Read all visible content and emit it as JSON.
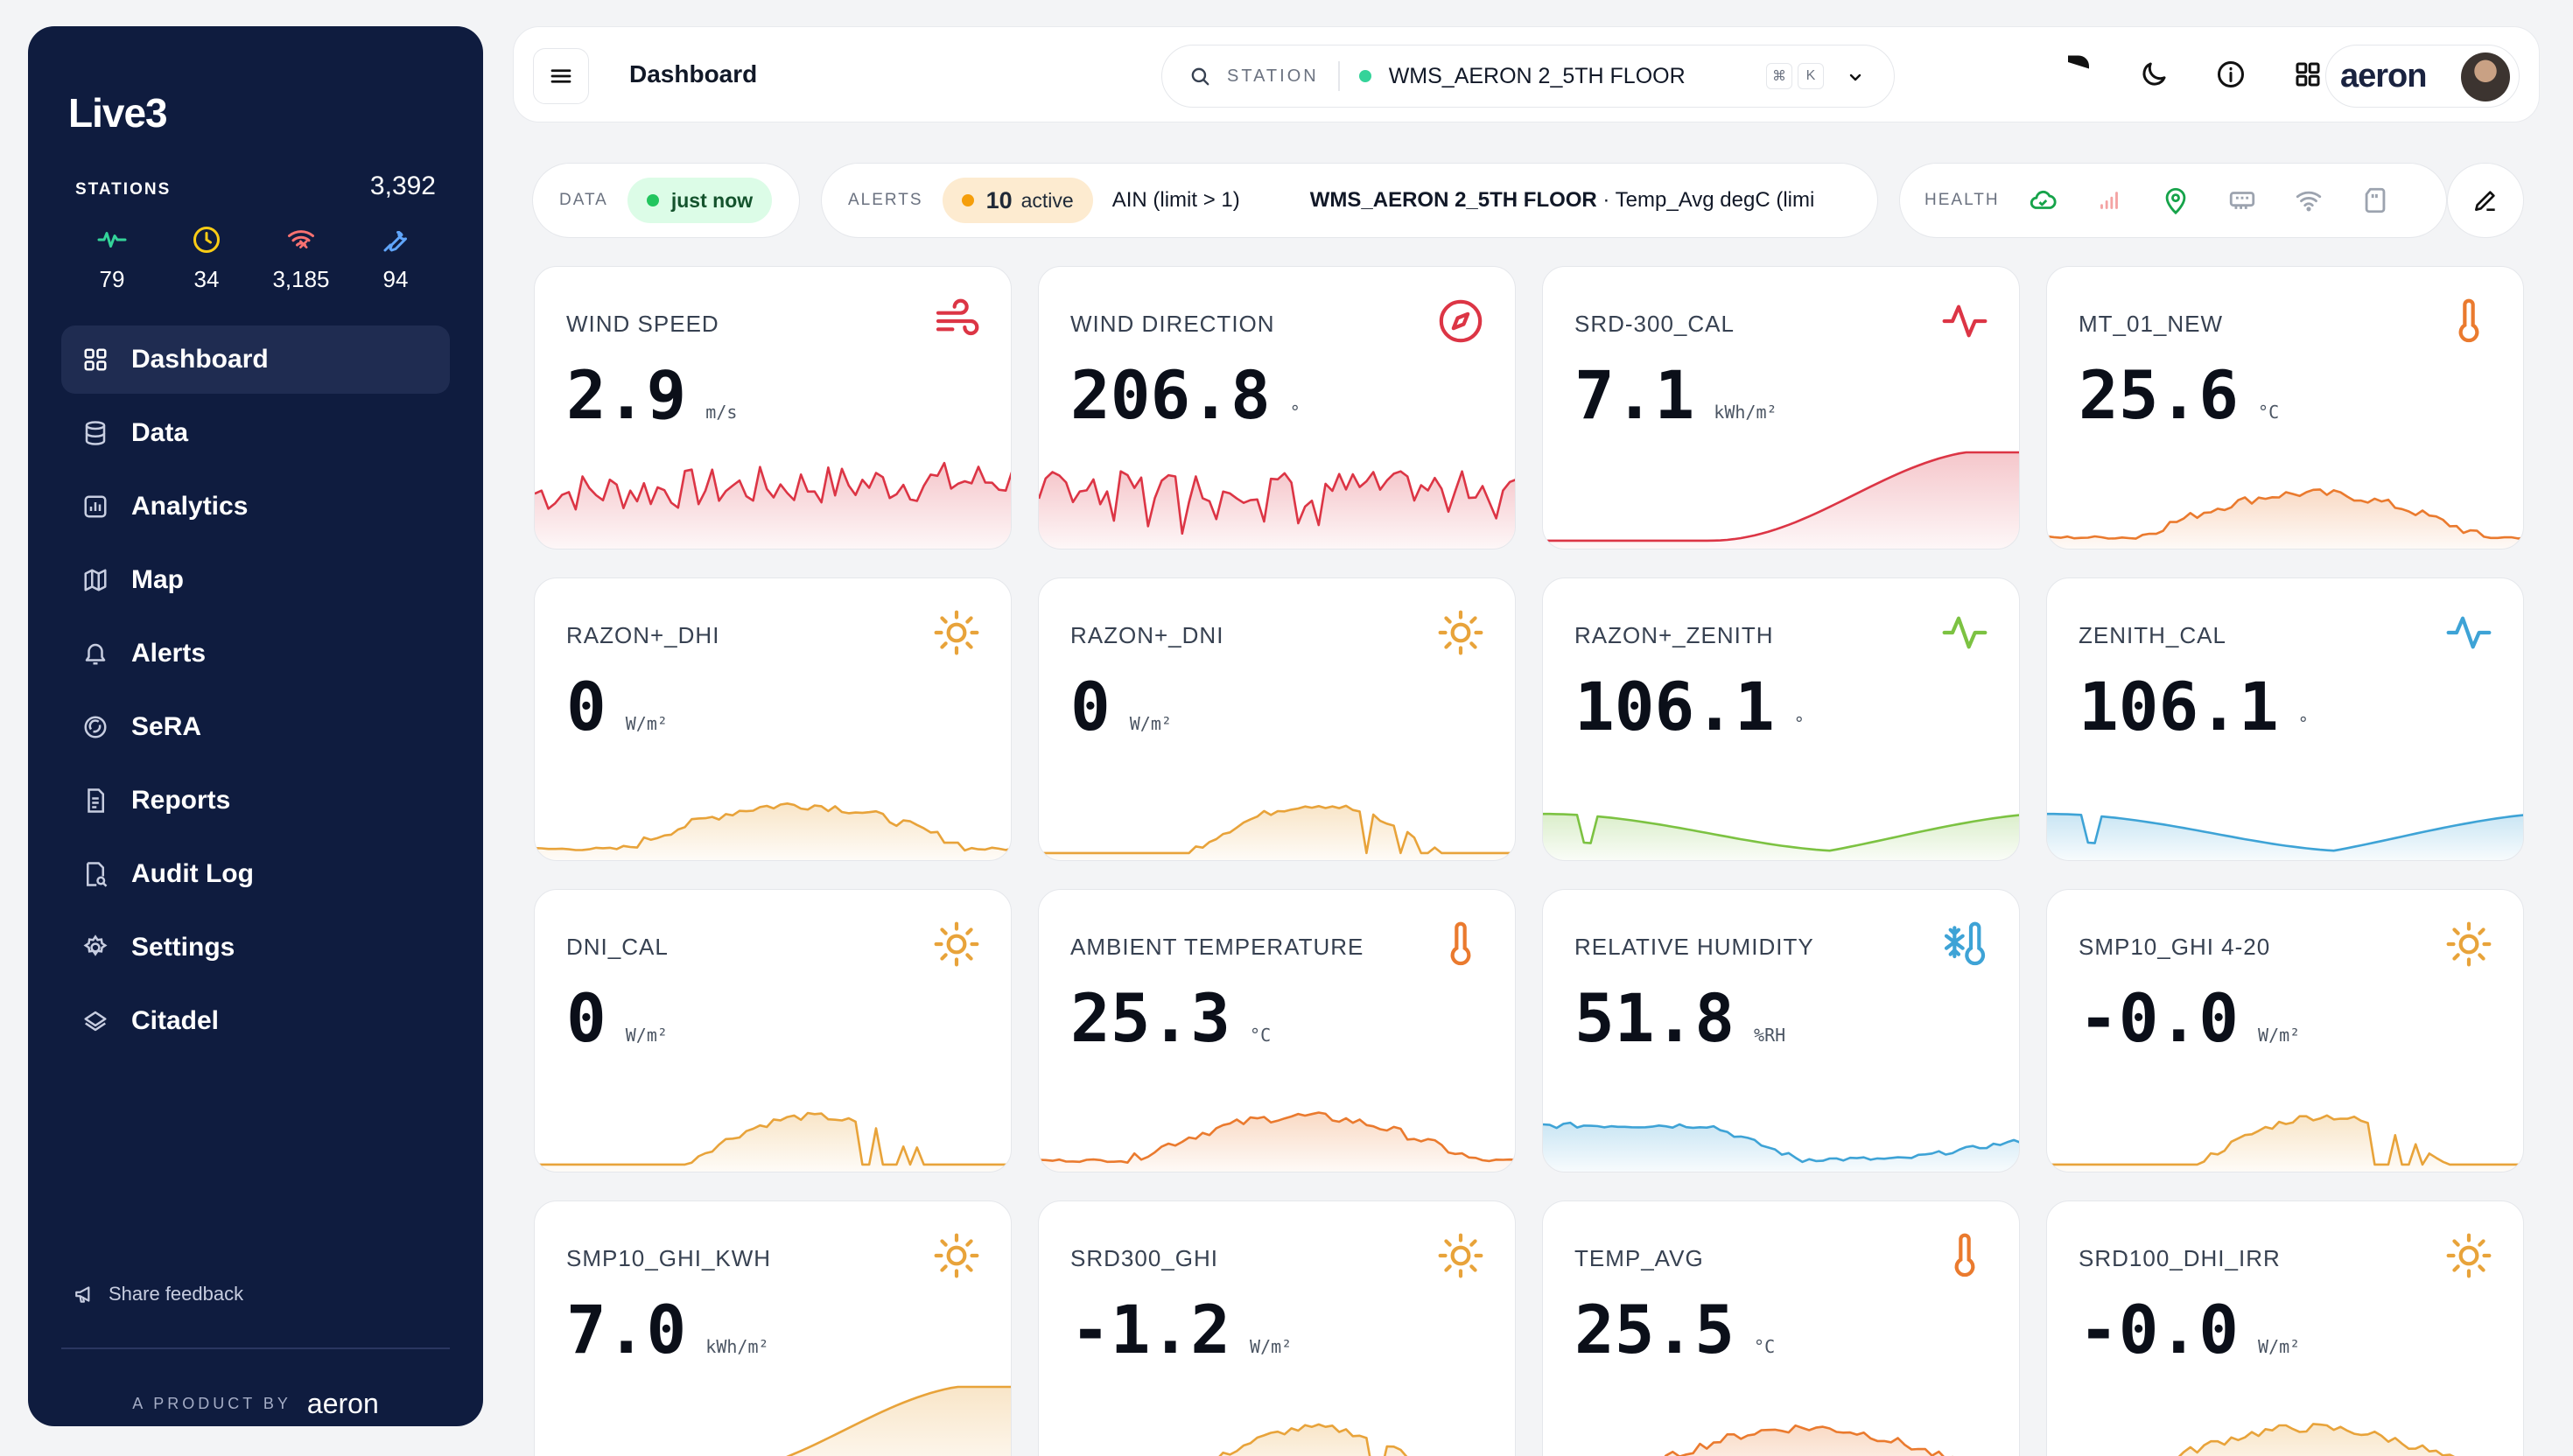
{
  "sidebar": {
    "brand": "Live3",
    "stations_label": "STATIONS",
    "stations_total": "3,392",
    "stats": [
      {
        "icon": "activity-icon",
        "value": "79",
        "color": "#34d399"
      },
      {
        "icon": "clock-icon",
        "value": "34",
        "color": "#facc15"
      },
      {
        "icon": "wifi-off-icon",
        "value": "3,185",
        "color": "#f87171"
      },
      {
        "icon": "wrench-icon",
        "value": "94",
        "color": "#60a5fa"
      }
    ],
    "nav": [
      {
        "label": "Dashboard",
        "icon": "grid-icon",
        "active": true
      },
      {
        "label": "Data",
        "icon": "database-icon"
      },
      {
        "label": "Analytics",
        "icon": "analytics-icon"
      },
      {
        "label": "Map",
        "icon": "map-icon"
      },
      {
        "label": "Alerts",
        "icon": "bell-icon"
      },
      {
        "label": "SeRA",
        "icon": "sera-icon"
      },
      {
        "label": "Reports",
        "icon": "report-icon"
      },
      {
        "label": "Audit Log",
        "icon": "audit-icon"
      },
      {
        "label": "Settings",
        "icon": "gear-icon"
      },
      {
        "label": "Citadel",
        "icon": "citadel-icon"
      }
    ],
    "feedback": "Share feedback",
    "product_by": "A PRODUCT BY",
    "product_brand": "aeron"
  },
  "header": {
    "title": "Dashboard",
    "station_label": "STATION",
    "station_name": "WMS_AERON 2_5TH FLOOR",
    "kbd_1": "⌘",
    "kbd_2": "K",
    "brand": "aeron"
  },
  "status": {
    "data_label": "DATA",
    "data_value": "just now",
    "alerts_label": "ALERTS",
    "alerts_count": "10",
    "alerts_suffix": "active",
    "ticker_1": "AIN (limit > 1)",
    "ticker_2_bold": "WMS_AERON 2_5TH FLOOR",
    "ticker_2_rest": " · Temp_Avg degC (limi",
    "health_label": "HEALTH"
  },
  "colors": {
    "red": "#dc3545",
    "orange": "#e8a33a",
    "green": "#7cc242",
    "blue": "#3ea3d6",
    "temp": "#ea7a2e"
  },
  "cards": [
    {
      "title": "WIND SPEED",
      "value": "2.9",
      "unit": "m/s",
      "icon": "wind-icon"
    },
    {
      "title": "WIND DIRECTION",
      "value": "206.8",
      "unit": "°",
      "icon": "compass-icon"
    },
    {
      "title": "SRD-300_CAL",
      "value": "7.1",
      "unit": "kWh/m²",
      "icon": "activity-icon"
    },
    {
      "title": "MT_01_NEW",
      "value": "25.6",
      "unit": "°C",
      "icon": "thermometer-icon"
    },
    {
      "title": "RAZON+_DHI",
      "value": "0",
      "unit": "W/m²",
      "icon": "sun-icon"
    },
    {
      "title": "RAZON+_DNI",
      "value": "0",
      "unit": "W/m²",
      "icon": "sun-icon"
    },
    {
      "title": "RAZON+_ZENITH",
      "value": "106.1",
      "unit": "°",
      "icon": "activity-icon"
    },
    {
      "title": "ZENITH_CAL",
      "value": "106.1",
      "unit": "°",
      "icon": "activity-icon"
    },
    {
      "title": "DNI_CAL",
      "value": "0",
      "unit": "W/m²",
      "icon": "sun-icon"
    },
    {
      "title": "AMBIENT TEMPERATURE",
      "value": "25.3",
      "unit": "°C",
      "icon": "thermometer-icon"
    },
    {
      "title": "RELATIVE HUMIDITY",
      "value": "51.8",
      "unit": "%RH",
      "icon": "snow-thermometer-icon"
    },
    {
      "title": "SMP10_GHI 4-20",
      "value": "-0.0",
      "unit": "W/m²",
      "icon": "sun-icon"
    },
    {
      "title": "SMP10_GHI_KWH",
      "value": "7.0",
      "unit": "kWh/m²",
      "icon": "sun-icon"
    },
    {
      "title": "SRD300_GHI",
      "value": "-1.2",
      "unit": "W/m²",
      "icon": "sun-icon"
    },
    {
      "title": "TEMP_AVG",
      "value": "25.5",
      "unit": "°C",
      "icon": "thermometer-icon"
    },
    {
      "title": "SRD100_DHI_IRR",
      "value": "-0.0",
      "unit": "W/m²",
      "icon": "sun-icon"
    }
  ]
}
